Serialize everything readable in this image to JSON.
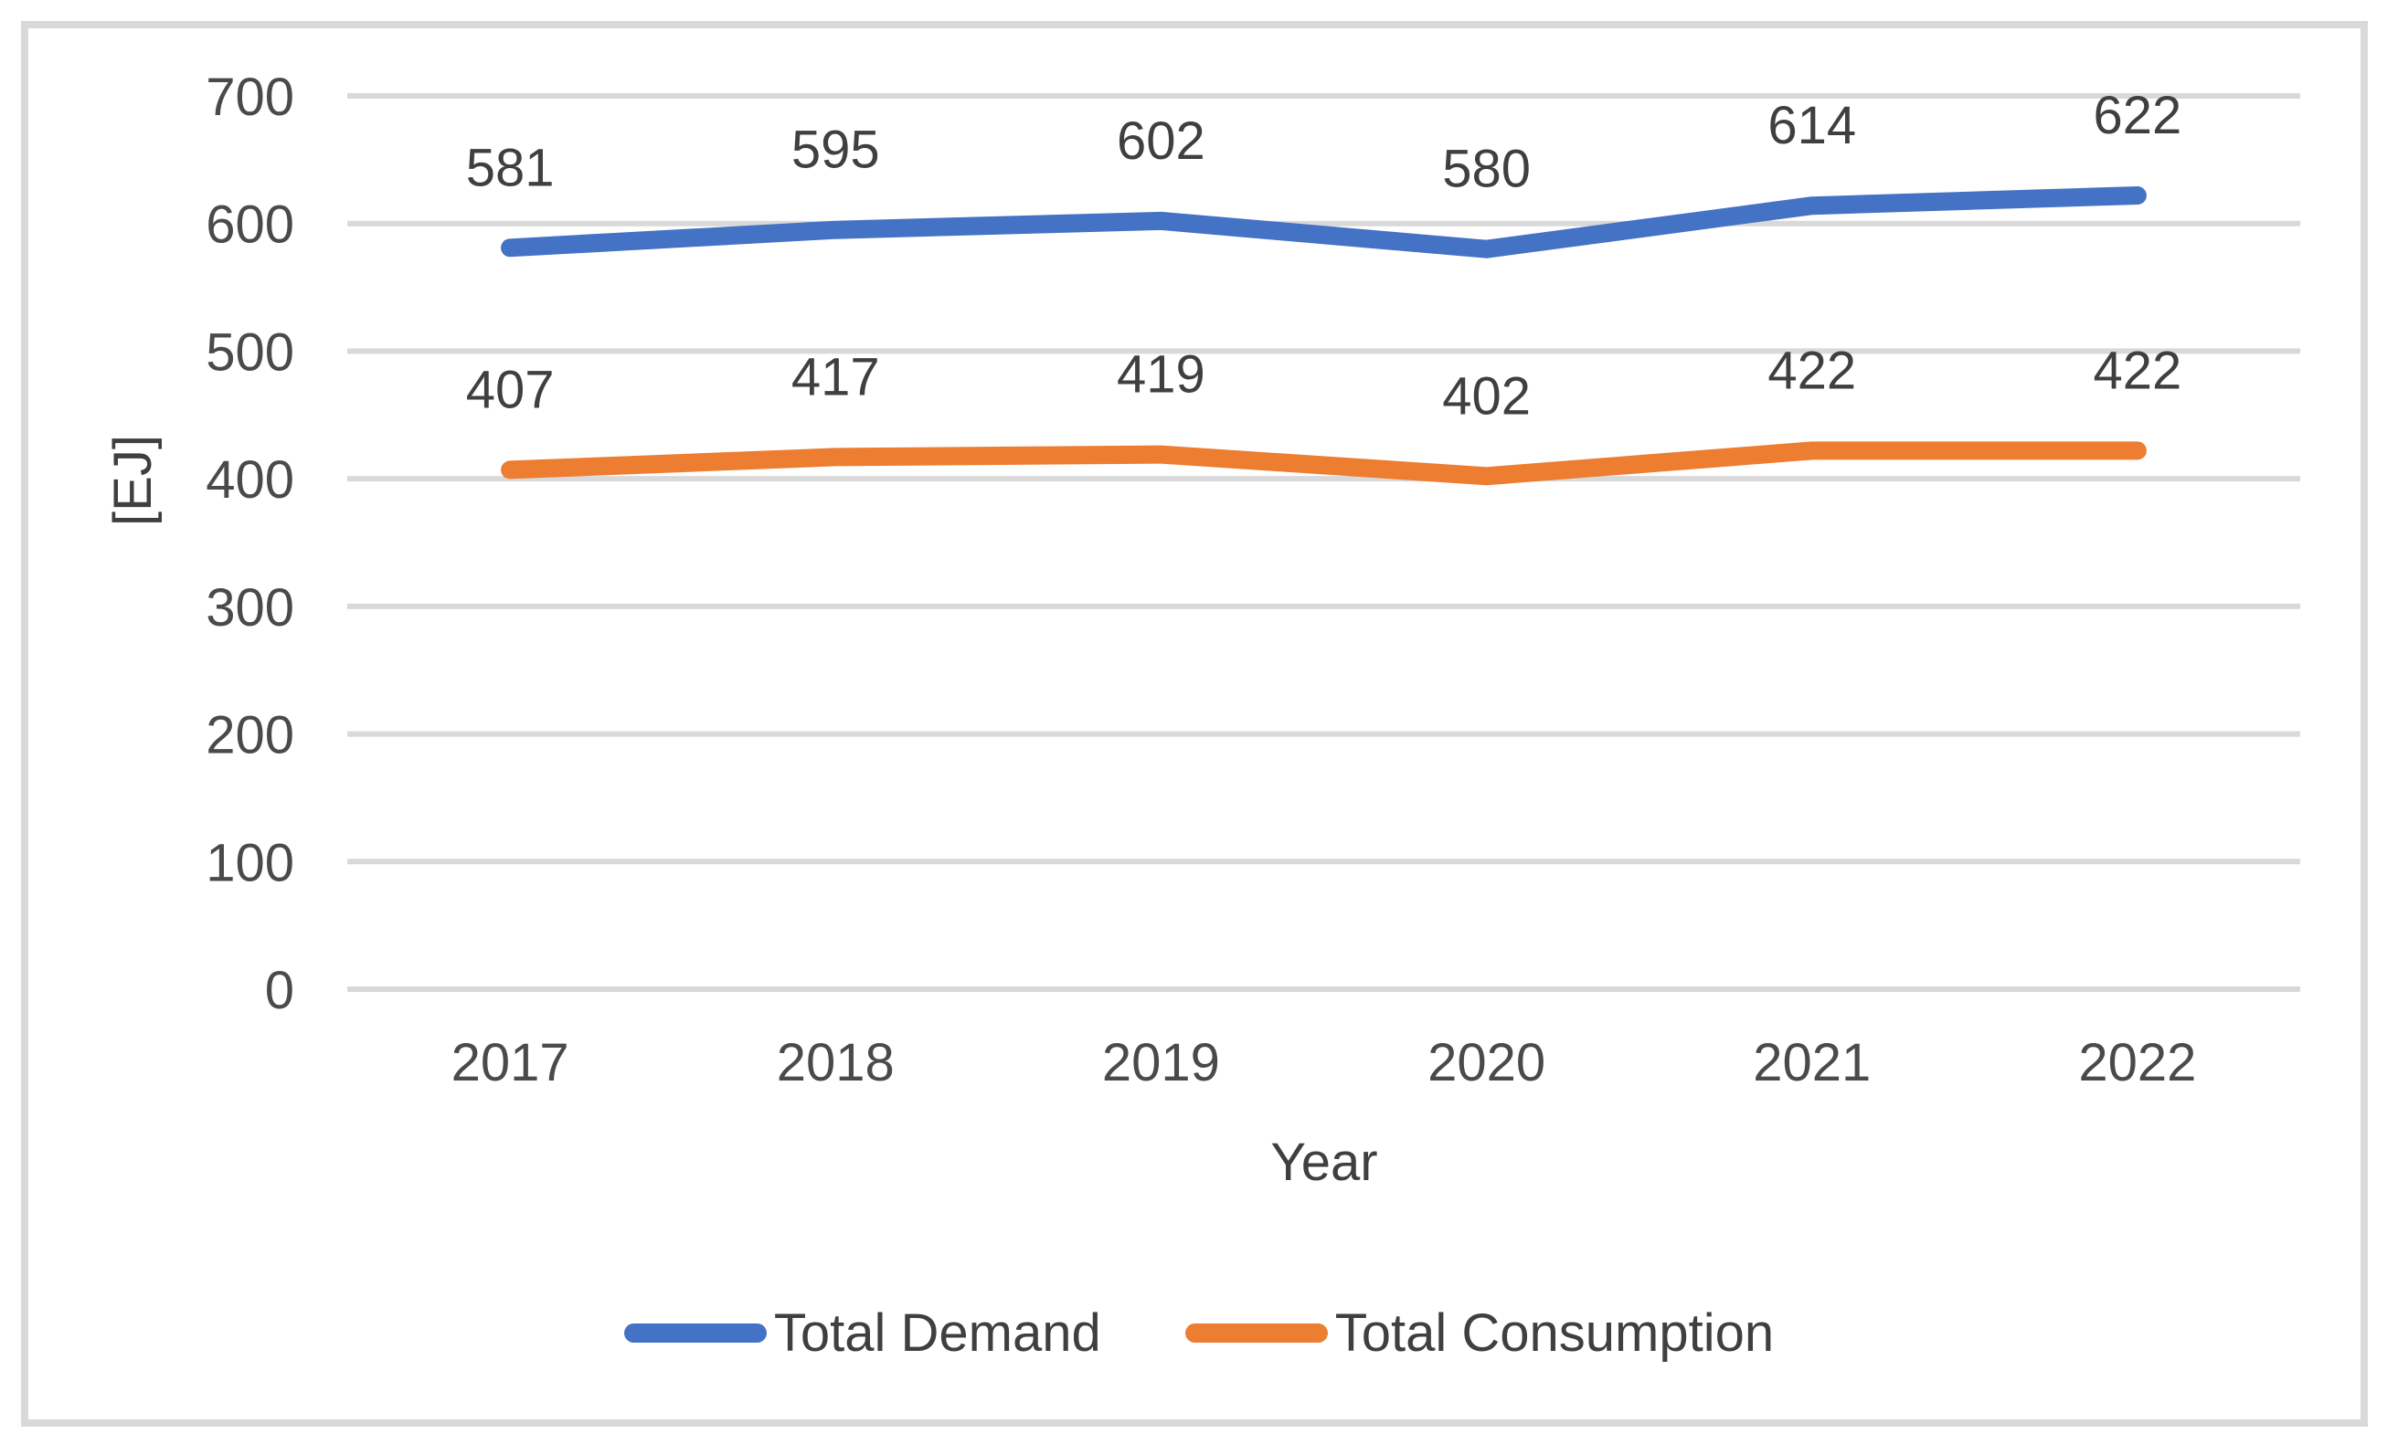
{
  "chart_data": {
    "type": "line",
    "x": [
      "2017",
      "2018",
      "2019",
      "2020",
      "2021",
      "2022"
    ],
    "xlabel": "Year",
    "ylabel": "[EJ]",
    "ylim": [
      0,
      700
    ],
    "ytick_step": 100,
    "y_ticks": [
      "0",
      "100",
      "200",
      "300",
      "400",
      "500",
      "600",
      "700"
    ],
    "grid": "horizontal",
    "legend_position": "bottom-center",
    "data_labels": "above-points",
    "series": [
      {
        "name": "Total Demand",
        "color": "#4472C4",
        "values": [
          581,
          595,
          602,
          580,
          614,
          622
        ]
      },
      {
        "name": "Total Consumption",
        "color": "#ED7D31",
        "values": [
          407,
          417,
          419,
          402,
          422,
          422
        ]
      }
    ]
  },
  "legend": {
    "items": [
      {
        "label": "Total Demand",
        "color": "#4472C4"
      },
      {
        "label": "Total Consumption",
        "color": "#ED7D31"
      }
    ]
  },
  "colors": {
    "background": "#FFFFFF",
    "frame_border": "#D9D9D9",
    "gridline": "#D9D9D9",
    "axis_tick_text": "#4A4A4A",
    "axis_title_text": "#3F3F3F",
    "data_label_text": "#3F3F3F",
    "legend_text": "#3F3F3F"
  }
}
